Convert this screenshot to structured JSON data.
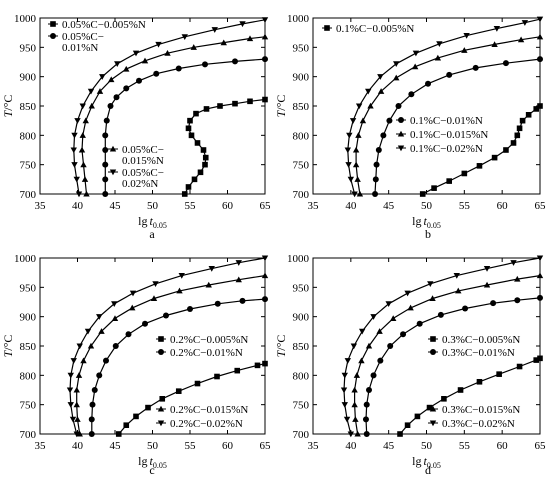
{
  "chart_data": [
    {
      "type": "line",
      "panel_label": "a",
      "ylabel_symbol": "T",
      "ylabel_unit": "/°C",
      "xlabel_main": "lg",
      "xlabel_var": "t",
      "xlabel_sub": "0.05",
      "xlim": [
        35,
        65
      ],
      "ylim": [
        700,
        1000
      ],
      "xticks": [
        35,
        40,
        45,
        50,
        55,
        60,
        65
      ],
      "yticks": [
        700,
        750,
        800,
        850,
        900,
        950,
        1000
      ],
      "legends": [
        {
          "position": "top-left",
          "entries": [
            {
              "marker": "square",
              "lines": [
                "0.05%C−0.005%N"
              ]
            },
            {
              "marker": "circle",
              "lines": [
                "0.05%C−",
                "0.01%N"
              ]
            }
          ]
        },
        {
          "position": "center",
          "entries": [
            {
              "marker": "triangle-up",
              "lines": [
                "0.05%C−",
                "0.015%N"
              ]
            },
            {
              "marker": "triangle-down",
              "lines": [
                "0.05%C−",
                "0.02%N"
              ]
            }
          ]
        }
      ],
      "series": [
        {
          "name": "0.05%C−0.005%N",
          "marker": "square",
          "x": [
            54.3,
            54.8,
            55.6,
            56.4,
            57.0,
            57.1,
            56.8,
            56.0,
            55.2,
            54.8,
            55.0,
            55.8,
            57.2,
            59.0,
            61.0,
            63.0,
            65.0
          ],
          "y": [
            700,
            712,
            725,
            737,
            750,
            762,
            775,
            787,
            800,
            812,
            825,
            837,
            845,
            850,
            854,
            858,
            861
          ]
        },
        {
          "name": "0.05%C−0.01%N",
          "marker": "circle",
          "x": [
            43.7,
            43.7,
            43.7,
            43.7,
            43.7,
            43.9,
            44.4,
            45.2,
            46.5,
            48.2,
            50.5,
            53.5,
            57.0,
            61.0,
            65.0
          ],
          "y": [
            700,
            725,
            750,
            775,
            800,
            825,
            850,
            865,
            880,
            893,
            905,
            914,
            921,
            926,
            930
          ]
        },
        {
          "name": "0.05%C−0.015%N",
          "marker": "triangle-up",
          "x": [
            41.2,
            41.0,
            40.8,
            40.6,
            40.7,
            41.1,
            41.9,
            43.0,
            44.5,
            46.5,
            49.0,
            52.0,
            55.5,
            59.5,
            63.0,
            65.0
          ],
          "y": [
            700,
            725,
            750,
            775,
            800,
            825,
            850,
            875,
            895,
            913,
            927,
            940,
            950,
            958,
            965,
            968
          ]
        },
        {
          "name": "0.05%C−0.02%N",
          "marker": "triangle-down",
          "x": [
            40.2,
            39.9,
            39.6,
            39.5,
            39.6,
            40.0,
            40.7,
            41.8,
            43.3,
            45.3,
            47.8,
            50.8,
            54.3,
            58.3,
            62.0,
            65.0
          ],
          "y": [
            700,
            725,
            750,
            775,
            800,
            825,
            850,
            875,
            900,
            922,
            940,
            955,
            968,
            980,
            990,
            997
          ]
        }
      ]
    },
    {
      "type": "line",
      "panel_label": "b",
      "ylabel_symbol": "T",
      "ylabel_unit": "/°C",
      "xlabel_main": "lg",
      "xlabel_var": "t",
      "xlabel_sub": "0.05",
      "xlim": [
        35,
        65
      ],
      "ylim": [
        700,
        1000
      ],
      "xticks": [
        35,
        40,
        45,
        50,
        55,
        60,
        65
      ],
      "yticks": [
        700,
        750,
        800,
        850,
        900,
        950,
        1000
      ],
      "legends": [
        {
          "position": "top-left",
          "entries": [
            {
              "marker": "square",
              "lines": [
                "0.1%C−0.005%N"
              ]
            }
          ]
        },
        {
          "position": "center",
          "entries": [
            {
              "marker": "circle",
              "lines": [
                "0.1%C−0.01%N"
              ]
            },
            {
              "marker": "triangle-up",
              "lines": [
                "0.1%C−0.015%N"
              ]
            },
            {
              "marker": "triangle-down",
              "lines": [
                "0.1%C−0.02%N"
              ]
            }
          ]
        }
      ],
      "series": [
        {
          "name": "0.1%C−0.005%N",
          "marker": "square",
          "x": [
            49.5,
            51.0,
            53.0,
            55.0,
            57.0,
            59.0,
            60.5,
            61.5,
            62.0,
            62.3,
            62.7,
            63.5,
            64.5,
            65.0
          ],
          "y": [
            700,
            710,
            722,
            735,
            748,
            762,
            775,
            787,
            800,
            812,
            825,
            835,
            845,
            850
          ]
        },
        {
          "name": "0.1%C−0.01%N",
          "marker": "circle",
          "x": [
            43.2,
            43.3,
            43.4,
            43.7,
            44.3,
            45.1,
            46.3,
            48.0,
            50.2,
            53.0,
            56.5,
            60.5,
            65.0
          ],
          "y": [
            700,
            725,
            750,
            775,
            800,
            825,
            850,
            870,
            888,
            903,
            915,
            923,
            930
          ]
        },
        {
          "name": "0.1%C−0.015%N",
          "marker": "triangle-up",
          "x": [
            41.2,
            40.9,
            40.7,
            40.7,
            41.0,
            41.6,
            42.6,
            44.0,
            46.0,
            48.5,
            51.5,
            55.0,
            59.0,
            62.5,
            65.0
          ],
          "y": [
            700,
            725,
            750,
            775,
            800,
            825,
            850,
            875,
            898,
            917,
            932,
            945,
            955,
            963,
            968
          ]
        },
        {
          "name": "0.1%C−0.02%N",
          "marker": "triangle-down",
          "x": [
            40.5,
            40.0,
            39.7,
            39.6,
            39.8,
            40.3,
            41.1,
            42.3,
            43.9,
            46.0,
            48.6,
            51.7,
            55.3,
            59.3,
            63.0,
            65.0
          ],
          "y": [
            700,
            725,
            750,
            775,
            800,
            825,
            850,
            875,
            900,
            922,
            940,
            956,
            970,
            982,
            992,
            998
          ]
        }
      ]
    },
    {
      "type": "line",
      "panel_label": "c",
      "ylabel_symbol": "T",
      "ylabel_unit": "/°C",
      "xlabel_main": "lg",
      "xlabel_var": "t",
      "xlabel_sub": "0.05",
      "xlim": [
        35,
        65
      ],
      "ylim": [
        700,
        1000
      ],
      "xticks": [
        35,
        40,
        45,
        50,
        55,
        60,
        65
      ],
      "yticks": [
        700,
        750,
        800,
        850,
        900,
        950,
        1000
      ],
      "legends": [
        {
          "position": "right-middle",
          "entries": [
            {
              "marker": "square",
              "lines": [
                "0.2%C−0.005%N"
              ]
            },
            {
              "marker": "circle",
              "lines": [
                "0.2%C−0.01%N"
              ]
            }
          ]
        },
        {
          "position": "bottom-right",
          "entries": [
            {
              "marker": "triangle-up",
              "lines": [
                "0.2%C−0.015%N"
              ]
            },
            {
              "marker": "triangle-down",
              "lines": [
                "0.2%C−0.02%N"
              ]
            }
          ]
        }
      ],
      "series": [
        {
          "name": "0.2%C−0.005%N",
          "marker": "square",
          "x": [
            45.5,
            46.5,
            47.8,
            49.4,
            51.3,
            53.5,
            56.0,
            58.6,
            61.3,
            64.0,
            65.0
          ],
          "y": [
            700,
            715,
            730,
            745,
            760,
            773,
            786,
            798,
            808,
            817,
            820
          ]
        },
        {
          "name": "0.2%C−0.01%N",
          "marker": "circle",
          "x": [
            41.9,
            41.9,
            42.0,
            42.3,
            42.9,
            43.8,
            45.1,
            46.8,
            49.0,
            51.8,
            55.0,
            58.7,
            62.0,
            65.0
          ],
          "y": [
            700,
            725,
            750,
            775,
            800,
            825,
            850,
            870,
            888,
            902,
            913,
            922,
            927,
            930
          ]
        },
        {
          "name": "0.2%C−0.015%N",
          "marker": "triangle-up",
          "x": [
            40.3,
            40.0,
            39.9,
            39.9,
            40.2,
            40.8,
            41.8,
            43.2,
            45.0,
            47.3,
            50.2,
            53.6,
            57.5,
            61.5,
            65.0
          ],
          "y": [
            700,
            725,
            750,
            775,
            800,
            825,
            850,
            875,
            897,
            915,
            931,
            944,
            954,
            963,
            970
          ]
        },
        {
          "name": "0.2%C−0.02%N",
          "marker": "triangle-down",
          "x": [
            39.9,
            39.4,
            39.1,
            39.0,
            39.1,
            39.5,
            40.3,
            41.4,
            42.9,
            44.9,
            47.4,
            50.4,
            53.9,
            57.9,
            61.5,
            65.0
          ],
          "y": [
            700,
            725,
            750,
            775,
            800,
            825,
            850,
            875,
            900,
            922,
            940,
            956,
            970,
            982,
            992,
            1000
          ]
        }
      ]
    },
    {
      "type": "line",
      "panel_label": "d",
      "ylabel_symbol": "T",
      "ylabel_unit": "/°C",
      "xlabel_main": "lg",
      "xlabel_var": "t",
      "xlabel_sub": "0.05",
      "xlim": [
        35,
        65
      ],
      "ylim": [
        700,
        1000
      ],
      "xticks": [
        35,
        40,
        45,
        50,
        55,
        60,
        65
      ],
      "yticks": [
        700,
        750,
        800,
        850,
        900,
        950,
        1000
      ],
      "legends": [
        {
          "position": "right-middle",
          "entries": [
            {
              "marker": "square",
              "lines": [
                "0.3%C−0.005%N"
              ]
            },
            {
              "marker": "circle",
              "lines": [
                "0.3%C−0.01%N"
              ]
            }
          ]
        },
        {
          "position": "bottom-right",
          "entries": [
            {
              "marker": "triangle-up",
              "lines": [
                "0.3%C−0.015%N"
              ]
            },
            {
              "marker": "triangle-down",
              "lines": [
                "0.3%C−0.02%N"
              ]
            }
          ]
        }
      ],
      "series": [
        {
          "name": "0.3%C−0.005%N",
          "marker": "square",
          "x": [
            46.5,
            47.5,
            48.8,
            50.4,
            52.3,
            54.5,
            57.0,
            59.6,
            62.3,
            64.5,
            65.0
          ],
          "y": [
            700,
            715,
            730,
            745,
            760,
            775,
            789,
            802,
            815,
            826,
            829
          ]
        },
        {
          "name": "0.3%C−0.01%N",
          "marker": "circle",
          "x": [
            42.1,
            42.0,
            42.1,
            42.4,
            43.0,
            43.9,
            45.2,
            46.9,
            49.1,
            51.9,
            55.1,
            58.8,
            62.0,
            65.0
          ],
          "y": [
            700,
            725,
            750,
            775,
            800,
            825,
            850,
            870,
            888,
            903,
            914,
            923,
            928,
            932
          ]
        },
        {
          "name": "0.3%C−0.015%N",
          "marker": "triangle-up",
          "x": [
            40.9,
            40.6,
            40.5,
            40.5,
            40.8,
            41.4,
            42.4,
            43.8,
            45.6,
            47.9,
            50.8,
            54.2,
            58.0,
            62.0,
            65.0
          ],
          "y": [
            700,
            725,
            750,
            775,
            800,
            825,
            850,
            875,
            897,
            915,
            931,
            944,
            954,
            964,
            970
          ]
        },
        {
          "name": "0.3%C−0.02%N",
          "marker": "triangle-down",
          "x": [
            40.0,
            39.5,
            39.2,
            39.1,
            39.2,
            39.6,
            40.4,
            41.5,
            43.0,
            45.0,
            47.5,
            50.5,
            54.0,
            58.0,
            61.5,
            65.0
          ],
          "y": [
            700,
            725,
            750,
            775,
            800,
            825,
            850,
            875,
            900,
            922,
            940,
            956,
            970,
            982,
            992,
            1000
          ]
        }
      ]
    }
  ]
}
